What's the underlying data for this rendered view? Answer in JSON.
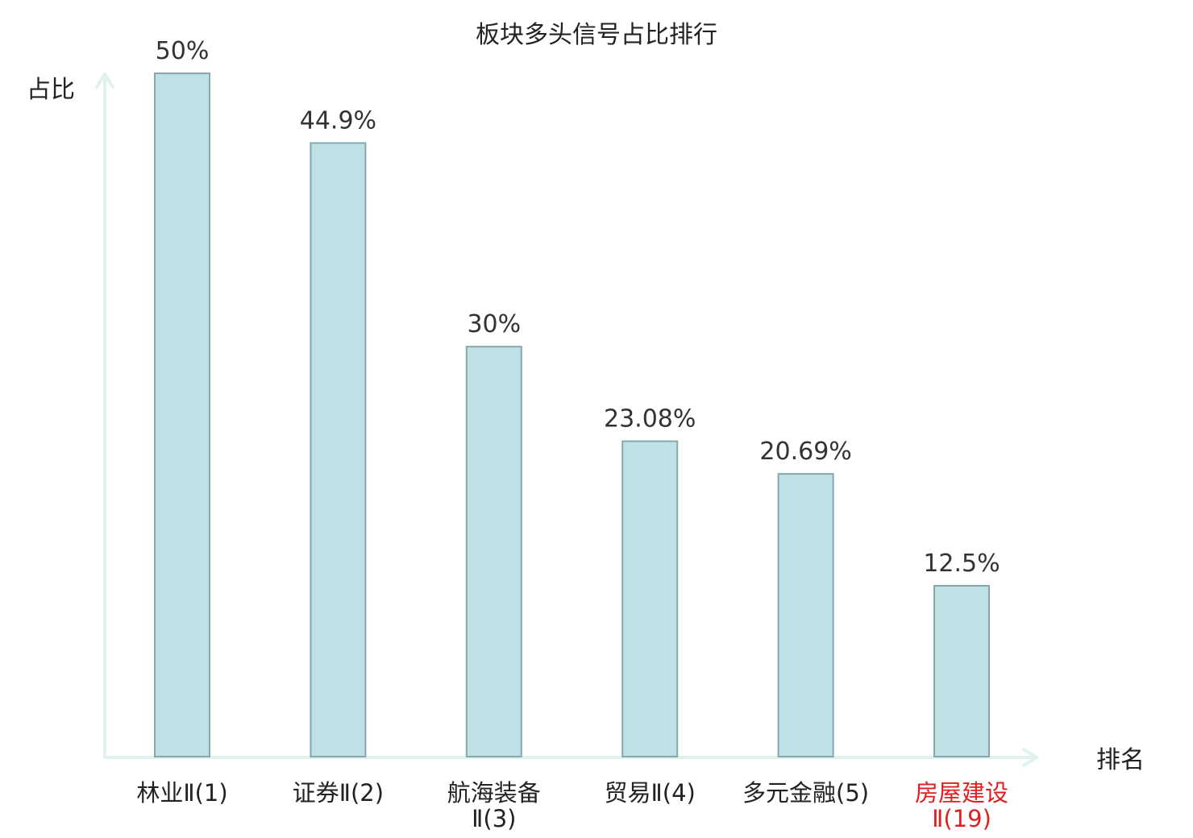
{
  "chart_data": {
    "type": "bar",
    "title": "板块多头信号占比排行",
    "ylabel": "占比",
    "xlabel": "排名",
    "ylim": [
      0,
      50
    ],
    "grid": false,
    "categories": [
      {
        "line1": "林业Ⅱ(1)",
        "line2": "",
        "highlight": false
      },
      {
        "line1": "证券Ⅱ(2)",
        "line2": "",
        "highlight": false
      },
      {
        "line1": "航海装备",
        "line2": "Ⅱ(3)",
        "highlight": false
      },
      {
        "line1": "贸易Ⅱ(4)",
        "line2": "",
        "highlight": false
      },
      {
        "line1": "多元金融(5)",
        "line2": "",
        "highlight": false
      },
      {
        "line1": "房屋建设",
        "line2": "Ⅱ(19)",
        "highlight": true
      }
    ],
    "values": [
      50,
      44.9,
      30,
      23.08,
      20.69,
      12.5
    ],
    "value_labels": [
      "50%",
      "44.9%",
      "30%",
      "23.08%",
      "20.69%",
      "12.5%"
    ]
  },
  "colors": {
    "bar_fill": "#bde1e4",
    "bar_stroke": "#86a8ad",
    "axis": "#e0f2ef",
    "text": "#333333",
    "highlight_text": "#e02020"
  }
}
